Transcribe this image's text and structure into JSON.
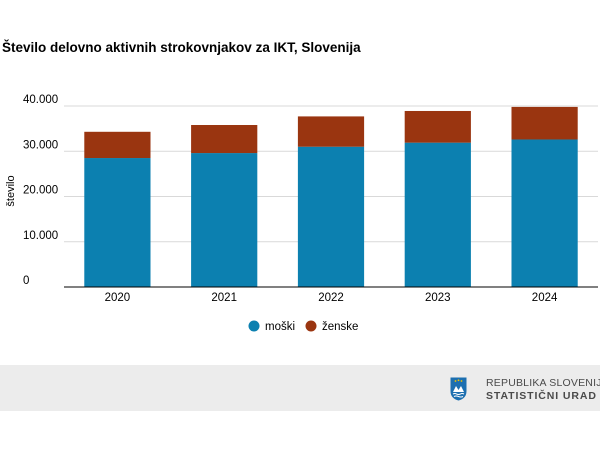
{
  "chart_data": {
    "type": "bar",
    "stacked": true,
    "title": "Število delovno aktivnih strokovnjakov za IKT, Slovenija",
    "ylabel": "število",
    "xlabel": "",
    "categories": [
      "2020",
      "2021",
      "2022",
      "2023",
      "2024"
    ],
    "series": [
      {
        "name": "moški",
        "color": "#0c80b0",
        "values": [
          28500,
          29600,
          31000,
          31900,
          32600
        ]
      },
      {
        "name": "ženske",
        "color": "#9a3510",
        "values": [
          5800,
          6200,
          6700,
          7000,
          7200
        ]
      }
    ],
    "ylim": [
      0,
      40000
    ],
    "yticks": [
      "0",
      "10.000",
      "20.000",
      "30.000",
      "40.000"
    ],
    "grid": true,
    "legend": "bottom"
  },
  "footer": {
    "org_line1": "REPUBLIKA SLOVENIJA",
    "org_line2": "STATISTIČNI URAD"
  }
}
